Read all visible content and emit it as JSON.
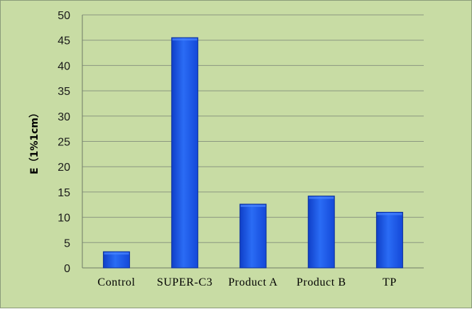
{
  "chart_data": {
    "type": "bar",
    "categories": [
      "Control",
      "SUPER-C3",
      "Product A",
      "Product B",
      "TP"
    ],
    "values": [
      3.2,
      45.5,
      12.6,
      14.2,
      11.0
    ],
    "title": "",
    "xlabel": "",
    "ylabel": "E（1%1cm）",
    "ylim": [
      0,
      50
    ],
    "yticks": [
      0,
      5,
      10,
      15,
      20,
      25,
      30,
      35,
      40,
      45,
      50
    ],
    "grid": true,
    "legend": "none",
    "colors": {
      "background": "#c8dca4",
      "bar": "#1f5fe8",
      "bar_edge": "#0a2f9c",
      "grid": "#8a9680"
    }
  }
}
